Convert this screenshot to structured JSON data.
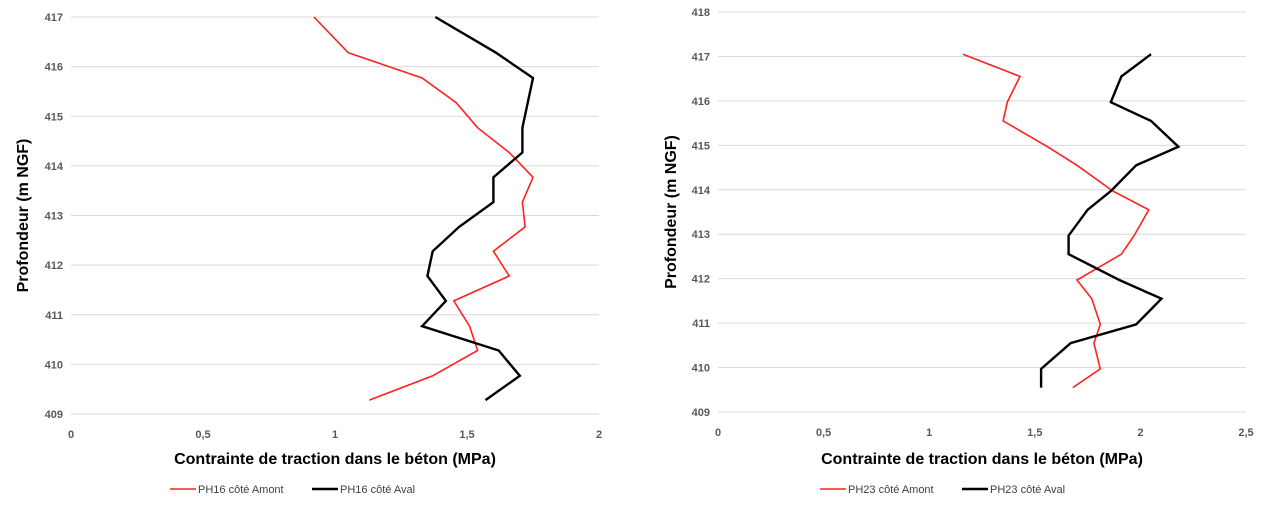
{
  "colors": {
    "amont": "#ff2020",
    "aval": "#000000",
    "grid": "#d9d9d9",
    "tick": "#595959"
  },
  "chart_data": [
    {
      "type": "line",
      "title": "",
      "xlabel": "Contrainte de traction dans le béton (MPa)",
      "ylabel": "Profondeur (m NGF)",
      "xlim": [
        0,
        2
      ],
      "ylim": [
        409,
        417
      ],
      "x_ticks": [
        0,
        0.5,
        1,
        1.5,
        2
      ],
      "x_tick_labels": [
        "0",
        "0,5",
        "1",
        "1,5",
        "2"
      ],
      "y_ticks": [
        409,
        410,
        411,
        412,
        413,
        414,
        415,
        416,
        417
      ],
      "y_tick_labels": [
        "409",
        "410",
        "411",
        "412",
        "413",
        "414",
        "415",
        "416",
        "417"
      ],
      "grid": "horizontal",
      "legend_position": "bottom",
      "series": [
        {
          "name": "PH16 côté Amont",
          "color": "#ff2020",
          "points": [
            [
              1.13,
              409.28
            ],
            [
              1.37,
              409.77
            ],
            [
              1.54,
              410.28
            ],
            [
              1.51,
              410.77
            ],
            [
              1.45,
              411.28
            ],
            [
              1.66,
              411.78
            ],
            [
              1.6,
              412.28
            ],
            [
              1.72,
              412.77
            ],
            [
              1.71,
              413.27
            ],
            [
              1.75,
              413.77
            ],
            [
              1.66,
              414.27
            ],
            [
              1.54,
              414.77
            ],
            [
              1.46,
              415.27
            ],
            [
              1.33,
              415.77
            ],
            [
              1.05,
              416.28
            ],
            [
              0.92,
              417.0
            ]
          ]
        },
        {
          "name": "PH16 côté Aval",
          "color": "#000000",
          "points": [
            [
              1.57,
              409.28
            ],
            [
              1.7,
              409.77
            ],
            [
              1.62,
              410.28
            ],
            [
              1.33,
              410.77
            ],
            [
              1.42,
              411.28
            ],
            [
              1.35,
              411.78
            ],
            [
              1.37,
              412.28
            ],
            [
              1.47,
              412.77
            ],
            [
              1.6,
              413.27
            ],
            [
              1.6,
              413.77
            ],
            [
              1.71,
              414.27
            ],
            [
              1.71,
              414.77
            ],
            [
              1.73,
              415.27
            ],
            [
              1.75,
              415.77
            ],
            [
              1.61,
              416.28
            ],
            [
              1.38,
              417.0
            ]
          ]
        }
      ]
    },
    {
      "type": "line",
      "title": "",
      "xlabel": "Contrainte de traction dans le béton (MPa)",
      "ylabel": "Profondeur (m NGF)",
      "xlim": [
        0,
        2.5
      ],
      "ylim": [
        409,
        418
      ],
      "x_ticks": [
        0,
        0.5,
        1,
        1.5,
        2,
        2.5
      ],
      "x_tick_labels": [
        "0",
        "0,5",
        "1",
        "1,5",
        "2",
        "2,5"
      ],
      "y_ticks": [
        409,
        410,
        411,
        412,
        413,
        414,
        415,
        416,
        417,
        418
      ],
      "y_tick_labels": [
        "409",
        "410",
        "411",
        "412",
        "413",
        "414",
        "415",
        "416",
        "417",
        "418"
      ],
      "grid": "horizontal",
      "legend_position": "bottom",
      "series": [
        {
          "name": "PH23 côté Amont",
          "color": "#ff2020",
          "points": [
            [
              1.68,
              409.55
            ],
            [
              1.81,
              409.97
            ],
            [
              1.78,
              410.55
            ],
            [
              1.81,
              410.97
            ],
            [
              1.77,
              411.55
            ],
            [
              1.7,
              411.97
            ],
            [
              1.91,
              412.55
            ],
            [
              1.97,
              412.97
            ],
            [
              2.04,
              413.55
            ],
            [
              1.87,
              413.97
            ],
            [
              1.7,
              414.55
            ],
            [
              1.56,
              414.97
            ],
            [
              1.35,
              415.55
            ],
            [
              1.37,
              415.97
            ],
            [
              1.43,
              416.55
            ],
            [
              1.16,
              417.05
            ]
          ]
        },
        {
          "name": "PH23 côté Aval",
          "color": "#000000",
          "points": [
            [
              1.53,
              409.55
            ],
            [
              1.53,
              409.97
            ],
            [
              1.67,
              410.55
            ],
            [
              1.98,
              410.97
            ],
            [
              2.1,
              411.55
            ],
            [
              1.9,
              411.97
            ],
            [
              1.66,
              412.55
            ],
            [
              1.66,
              412.97
            ],
            [
              1.75,
              413.55
            ],
            [
              1.86,
              413.97
            ],
            [
              1.98,
              414.55
            ],
            [
              2.18,
              414.97
            ],
            [
              2.05,
              415.55
            ],
            [
              1.86,
              415.97
            ],
            [
              1.91,
              416.55
            ],
            [
              2.05,
              417.05
            ]
          ]
        }
      ]
    }
  ]
}
